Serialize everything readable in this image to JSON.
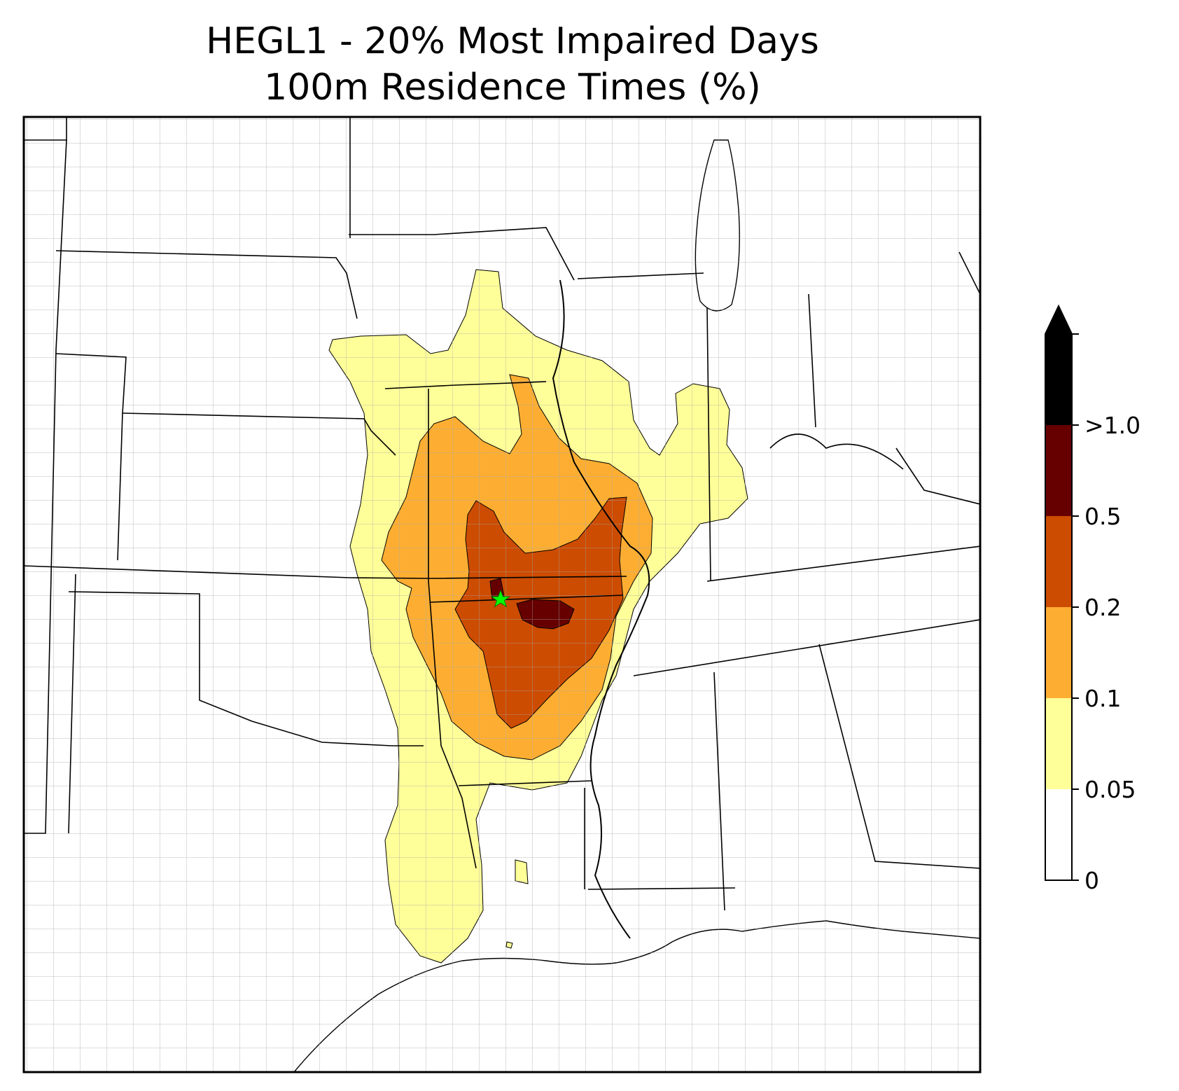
{
  "title": {
    "line1": "HEGL1 - 20% Most Impaired Days",
    "line2": "100m Residence Times (%)"
  },
  "map": {
    "region": "Central and Southeastern United States",
    "site_marker": "green star"
  },
  "colorbar": {
    "extend": "max",
    "levels": [
      {
        "label": "0",
        "color": "#ffffff"
      },
      {
        "label": "0.05",
        "color": "#ffff99"
      },
      {
        "label": "0.1",
        "color": "#fdae32"
      },
      {
        "label": "0.2",
        "color": "#cc4c02"
      },
      {
        "label": "0.5",
        "color": "#660000"
      },
      {
        "label": ">1.0",
        "color": "#000000"
      }
    ]
  }
}
